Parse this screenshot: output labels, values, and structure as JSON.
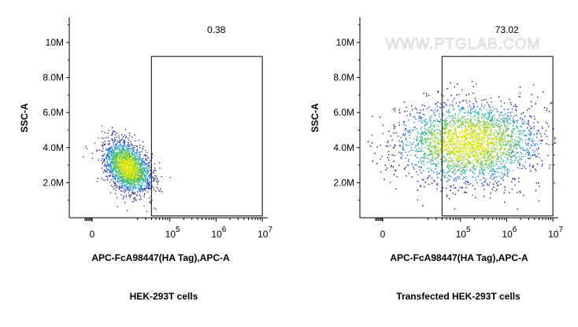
{
  "chart_data": [
    {
      "type": "scatter",
      "subtype": "flow-cytometry-density-dot-plot",
      "title": "HEK-293T cells",
      "xlabel": "APC-FcA98447(HA Tag),APC-A",
      "ylabel": "SSC-A",
      "x_scale": "biexponential",
      "x_ticks": [
        {
          "value": 0,
          "label": "0"
        },
        {
          "value": 100000,
          "base": "10",
          "exp": "5"
        },
        {
          "value": 1000000,
          "base": "10",
          "exp": "6"
        },
        {
          "value": 10000000,
          "base": "10",
          "exp": "7"
        }
      ],
      "xlim": [
        -5000,
        12000000
      ],
      "y_ticks": [
        {
          "value": 2000000,
          "label": "2.0M"
        },
        {
          "value": 4000000,
          "label": "4.0M"
        },
        {
          "value": 6000000,
          "label": "6.0M"
        },
        {
          "value": 8000000,
          "label": "8.0M"
        },
        {
          "value": 10000000,
          "label": "10M"
        }
      ],
      "ylim": [
        0,
        11500000
      ],
      "gate": {
        "x_range": [
          40000,
          10000000
        ],
        "y_range": [
          100000,
          9200000
        ],
        "percent": "0.38"
      },
      "population": {
        "center_x": 12000,
        "center_y": 2900000,
        "x_spread_log": 0.22,
        "y_spread": 700000,
        "events": 2600
      },
      "grid": false,
      "watermark": ""
    },
    {
      "type": "scatter",
      "subtype": "flow-cytometry-density-dot-plot",
      "title": "Transfected HEK-293T cells",
      "xlabel": "APC-FcA98447(HA Tag),APC-A",
      "ylabel": "SSC-A",
      "x_scale": "biexponential",
      "x_ticks": [
        {
          "value": 0,
          "label": "0"
        },
        {
          "value": 100000,
          "base": "10",
          "exp": "5"
        },
        {
          "value": 1000000,
          "base": "10",
          "exp": "6"
        },
        {
          "value": 10000000,
          "base": "10",
          "exp": "7"
        }
      ],
      "xlim": [
        -5000,
        12000000
      ],
      "y_ticks": [
        {
          "value": 2000000,
          "label": "2.0M"
        },
        {
          "value": 4000000,
          "label": "4.0M"
        },
        {
          "value": 6000000,
          "label": "6.0M"
        },
        {
          "value": 8000000,
          "label": "8.0M"
        },
        {
          "value": 10000000,
          "label": "10M"
        }
      ],
      "ylim": [
        0,
        11500000
      ],
      "gate": {
        "x_range": [
          40000,
          10000000
        ],
        "y_range": [
          100000,
          9200000
        ],
        "percent": "73.02"
      },
      "population": {
        "center_x": 150000,
        "center_y": 4300000,
        "x_spread_log": 0.75,
        "y_spread": 1200000,
        "events": 5200
      },
      "grid": false,
      "watermark": "WWW.PTGLAB.COM"
    }
  ],
  "colors": {
    "axis": "#000000",
    "gate": "#000000",
    "watermark": "#d6d6d6",
    "density_low": "#1a1a8c",
    "density_high": "#ffff00"
  }
}
